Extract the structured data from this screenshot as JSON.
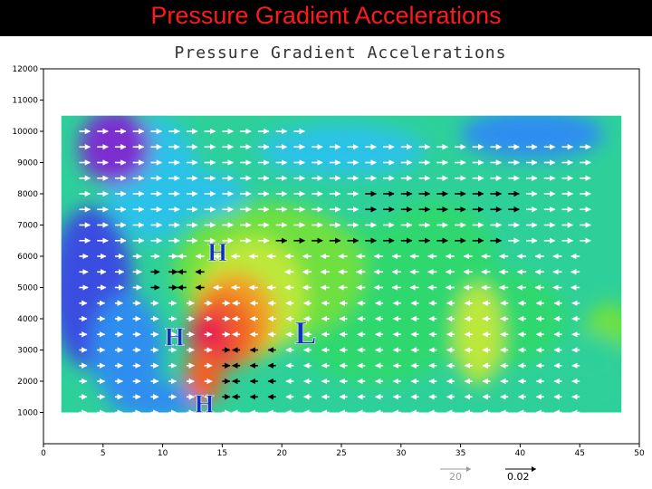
{
  "slide": {
    "title": "Pressure Gradient Accelerations",
    "title_color": "#ff1a1a",
    "header_bg": "#000000"
  },
  "chart_data": {
    "type": "heatmap",
    "title": "Pressure Gradient Accelerations",
    "xlim": [
      0,
      50
    ],
    "ylim": [
      0,
      12000
    ],
    "x_ticks": [
      "0",
      "5",
      "10",
      "15",
      "20",
      "25",
      "30",
      "35",
      "40",
      "45",
      "50"
    ],
    "y_ticks": [
      "1000",
      "2000",
      "3000",
      "4000",
      "5000",
      "6000",
      "7000",
      "8000",
      "9000",
      "10000",
      "11000",
      "12000"
    ],
    "grid": false,
    "overlay": "vector arrows (white and black) showing acceleration direction",
    "colormap": [
      "#7b2fd0",
      "#3a4ee0",
      "#2f8ef0",
      "#2bc2e8",
      "#2ed09a",
      "#2fd86e",
      "#6ee040",
      "#bce83a",
      "#f0a028",
      "#f06028",
      "#e81e50"
    ],
    "field_description": "Filled contours of pressure gradient acceleration; maximum near x=14, y=3500",
    "annotations": [
      {
        "text": "H",
        "x": 14.6,
        "y": 5850,
        "color": "#1030c0"
      },
      {
        "text": "H",
        "x": 11.0,
        "y": 3150,
        "color": "#1030c0"
      },
      {
        "text": "L",
        "x": 22.0,
        "y": 3200,
        "color": "#1030c0"
      },
      {
        "text": "H",
        "x": 13.5,
        "y": 1000,
        "color": "#1030c0"
      }
    ],
    "vector_legend": [
      {
        "label": "20",
        "color": "#999999"
      },
      {
        "label": "0.02",
        "color": "#000000"
      }
    ]
  }
}
